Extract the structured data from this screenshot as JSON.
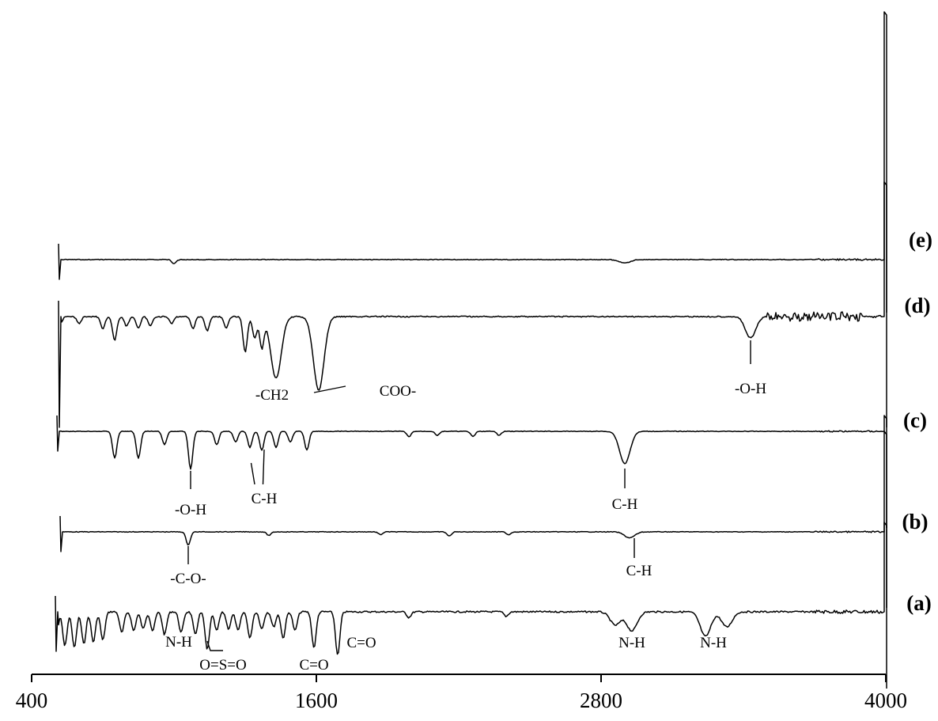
{
  "chart_data": {
    "type": "line",
    "title": "",
    "xlabel": "",
    "ylabel": "",
    "xlim": [
      400,
      4000
    ],
    "x_ticks": [
      "400",
      "1600",
      "2800",
      "4000"
    ],
    "grid": false,
    "stacked_offset": true,
    "series": [
      {
        "name": "(a)",
        "peaks": [
          {
            "x": 500,
            "depth": 1.0
          },
          {
            "x": 540,
            "depth": 0.9
          },
          {
            "x": 580,
            "depth": 0.95
          },
          {
            "x": 620,
            "depth": 0.85
          },
          {
            "x": 660,
            "depth": 0.8
          },
          {
            "x": 700,
            "depth": 0.75
          },
          {
            "x": 780,
            "depth": 0.55
          },
          {
            "x": 830,
            "depth": 0.5
          },
          {
            "x": 870,
            "depth": 0.45
          },
          {
            "x": 910,
            "depth": 0.5
          },
          {
            "x": 960,
            "depth": 0.6
          },
          {
            "x": 1030,
            "depth": 0.55
          },
          {
            "x": 1090,
            "depth": 0.6
          },
          {
            "x": 1140,
            "depth": 1.0
          },
          {
            "x": 1180,
            "depth": 0.5
          },
          {
            "x": 1230,
            "depth": 0.45
          },
          {
            "x": 1270,
            "depth": 0.5
          },
          {
            "x": 1320,
            "depth": 0.7
          },
          {
            "x": 1370,
            "depth": 0.45
          },
          {
            "x": 1420,
            "depth": 0.4
          },
          {
            "x": 1460,
            "depth": 0.7
          },
          {
            "x": 1510,
            "depth": 0.5
          },
          {
            "x": 1590,
            "depth": 0.95
          },
          {
            "x": 1690,
            "depth": 1.15
          },
          {
            "x": 1990,
            "depth": 0.15
          },
          {
            "x": 2400,
            "depth": 0.12
          },
          {
            "x": 2860,
            "depth": 0.35
          },
          {
            "x": 2930,
            "depth": 0.5
          },
          {
            "x": 3240,
            "depth": 0.65
          },
          {
            "x": 3330,
            "depth": 0.4
          }
        ],
        "annotations": [
          {
            "text": "N-H",
            "x": 1020
          },
          {
            "text": "O=S=O",
            "x": 1140
          },
          {
            "text": "C=O",
            "x": 1590
          },
          {
            "text": "C=O",
            "x": 1690
          },
          {
            "text": "N-H",
            "x": 2930
          },
          {
            "text": "N-H",
            "x": 3240
          }
        ]
      },
      {
        "name": "(b)",
        "peaks": [
          {
            "x": 430,
            "depth": 0.9
          },
          {
            "x": 1060,
            "depth": 0.55
          },
          {
            "x": 1400,
            "depth": 0.15
          },
          {
            "x": 1870,
            "depth": 0.12
          },
          {
            "x": 2160,
            "depth": 0.18
          },
          {
            "x": 2410,
            "depth": 0.12
          },
          {
            "x": 2920,
            "depth": 0.25
          }
        ],
        "annotations": [
          {
            "text": "-C-O-",
            "x": 1060
          },
          {
            "text": "C-H",
            "x": 2920
          }
        ]
      },
      {
        "name": "(c)",
        "peaks": [
          {
            "x": 750,
            "depth": 1.0
          },
          {
            "x": 850,
            "depth": 1.0
          },
          {
            "x": 960,
            "depth": 0.5
          },
          {
            "x": 1070,
            "depth": 1.4
          },
          {
            "x": 1180,
            "depth": 0.5
          },
          {
            "x": 1260,
            "depth": 0.4
          },
          {
            "x": 1320,
            "depth": 0.6
          },
          {
            "x": 1370,
            "depth": 0.7
          },
          {
            "x": 1430,
            "depth": 0.6
          },
          {
            "x": 1490,
            "depth": 0.4
          },
          {
            "x": 1560,
            "depth": 0.7
          },
          {
            "x": 1990,
            "depth": 0.2
          },
          {
            "x": 2110,
            "depth": 0.15
          },
          {
            "x": 2260,
            "depth": 0.2
          },
          {
            "x": 2370,
            "depth": 0.15
          },
          {
            "x": 2900,
            "depth": 1.2
          }
        ],
        "annotations": [
          {
            "text": "-O-H",
            "x": 1070
          },
          {
            "text": "C-H",
            "x": 1380
          },
          {
            "text": "C-H",
            "x": 2900
          }
        ]
      },
      {
        "name": "(d)",
        "peaks": [
          {
            "x": 520,
            "depth": 0.3
          },
          {
            "x": 600,
            "depth": 0.3
          },
          {
            "x": 700,
            "depth": 0.5
          },
          {
            "x": 750,
            "depth": 1.0
          },
          {
            "x": 800,
            "depth": 0.4
          },
          {
            "x": 850,
            "depth": 0.5
          },
          {
            "x": 900,
            "depth": 0.4
          },
          {
            "x": 990,
            "depth": 0.3
          },
          {
            "x": 1080,
            "depth": 0.5
          },
          {
            "x": 1140,
            "depth": 0.6
          },
          {
            "x": 1220,
            "depth": 0.5
          },
          {
            "x": 1300,
            "depth": 1.5
          },
          {
            "x": 1340,
            "depth": 0.9
          },
          {
            "x": 1370,
            "depth": 1.3
          },
          {
            "x": 1430,
            "depth": 2.6
          },
          {
            "x": 1610,
            "depth": 3.1
          },
          {
            "x": 3430,
            "depth": 0.9
          }
        ],
        "noisy_region": [
          3500,
          3900
        ],
        "annotations": [
          {
            "text": "-CH2",
            "x": 1430
          },
          {
            "text": "COO-",
            "x": 1610
          },
          {
            "text": "-O-H",
            "x": 3430
          }
        ]
      },
      {
        "name": "(e)",
        "peaks": [
          {
            "x": 1000,
            "depth": 0.3
          },
          {
            "x": 2900,
            "depth": 0.25
          }
        ],
        "annotations": []
      }
    ]
  }
}
